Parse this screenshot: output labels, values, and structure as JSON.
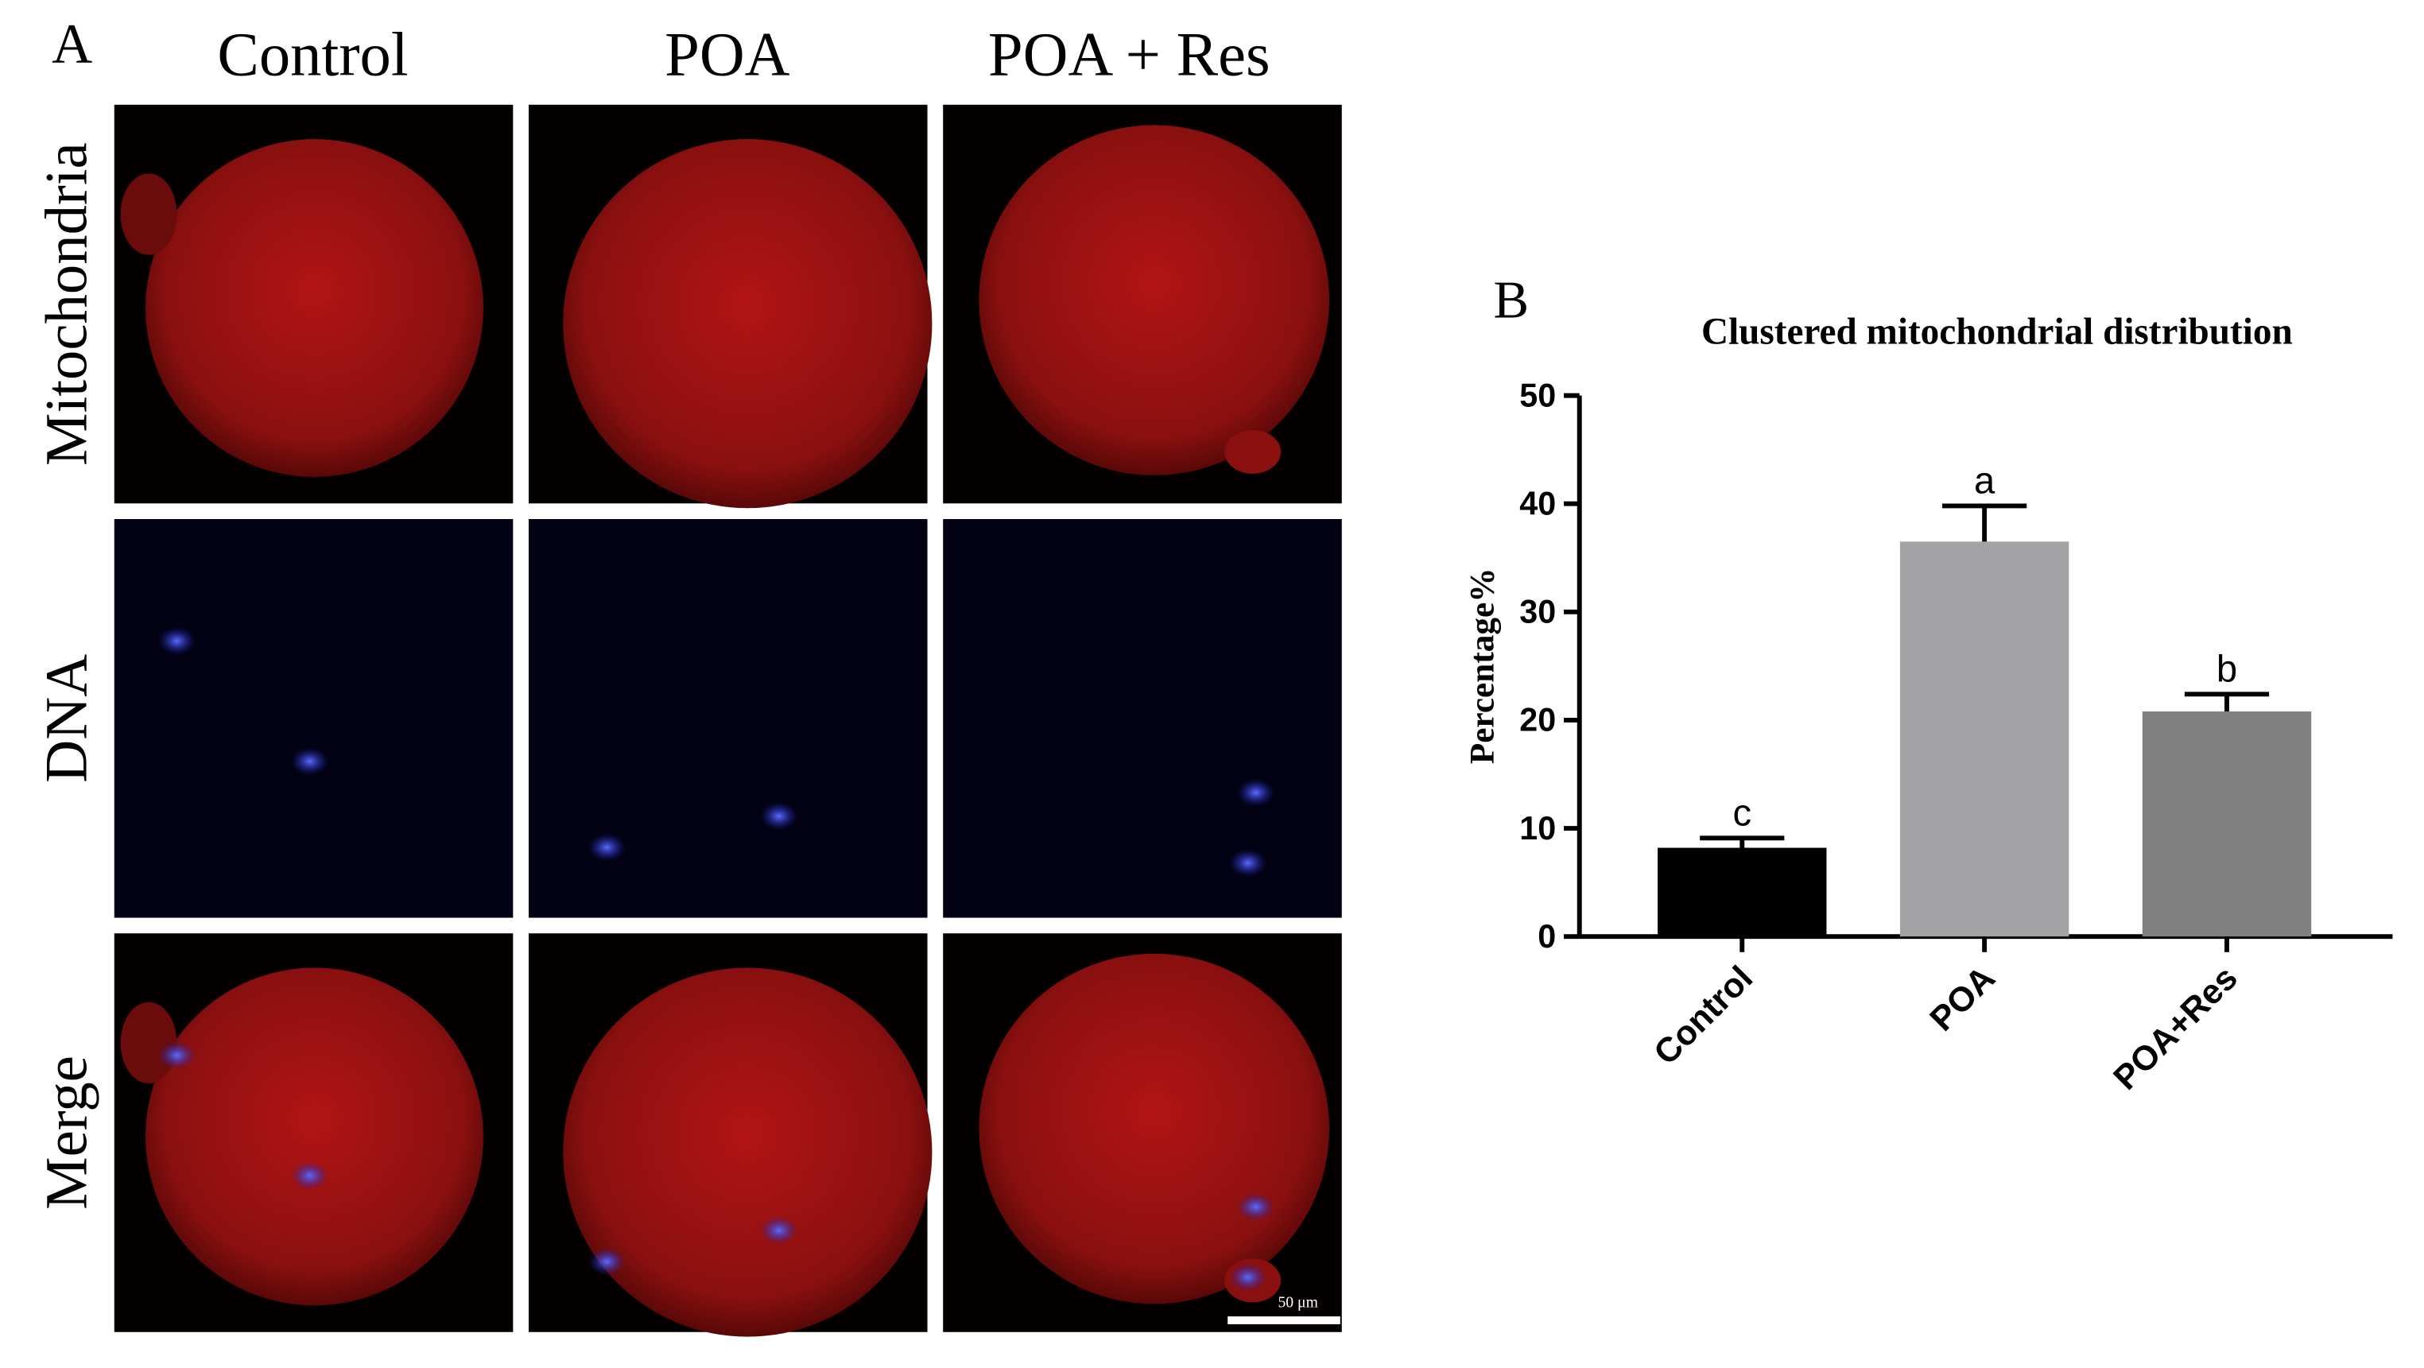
{
  "panel_a": {
    "label": "A",
    "columns": [
      "Control",
      "POA",
      "POA + Res"
    ],
    "rows": [
      "Mitochondria",
      "DNA",
      "Merge"
    ],
    "scale_bar": "50 μm"
  },
  "chart_data": {
    "type": "bar",
    "panel_label": "B",
    "title": "Clustered mitochondrial distribution",
    "y_label": "Percentage%",
    "categories": [
      "Control",
      "POA",
      "POA+Res"
    ],
    "values": [
      8.2,
      36.5,
      20.8
    ],
    "errors": [
      0.9,
      3.3,
      1.6
    ],
    "colors": [
      "#000000",
      "#a3a3a6",
      "#808080"
    ],
    "annotations": [
      "c",
      "a",
      "b"
    ],
    "ylim": [
      0,
      50
    ],
    "yticks": [
      0,
      10,
      20,
      30,
      40,
      50
    ]
  }
}
